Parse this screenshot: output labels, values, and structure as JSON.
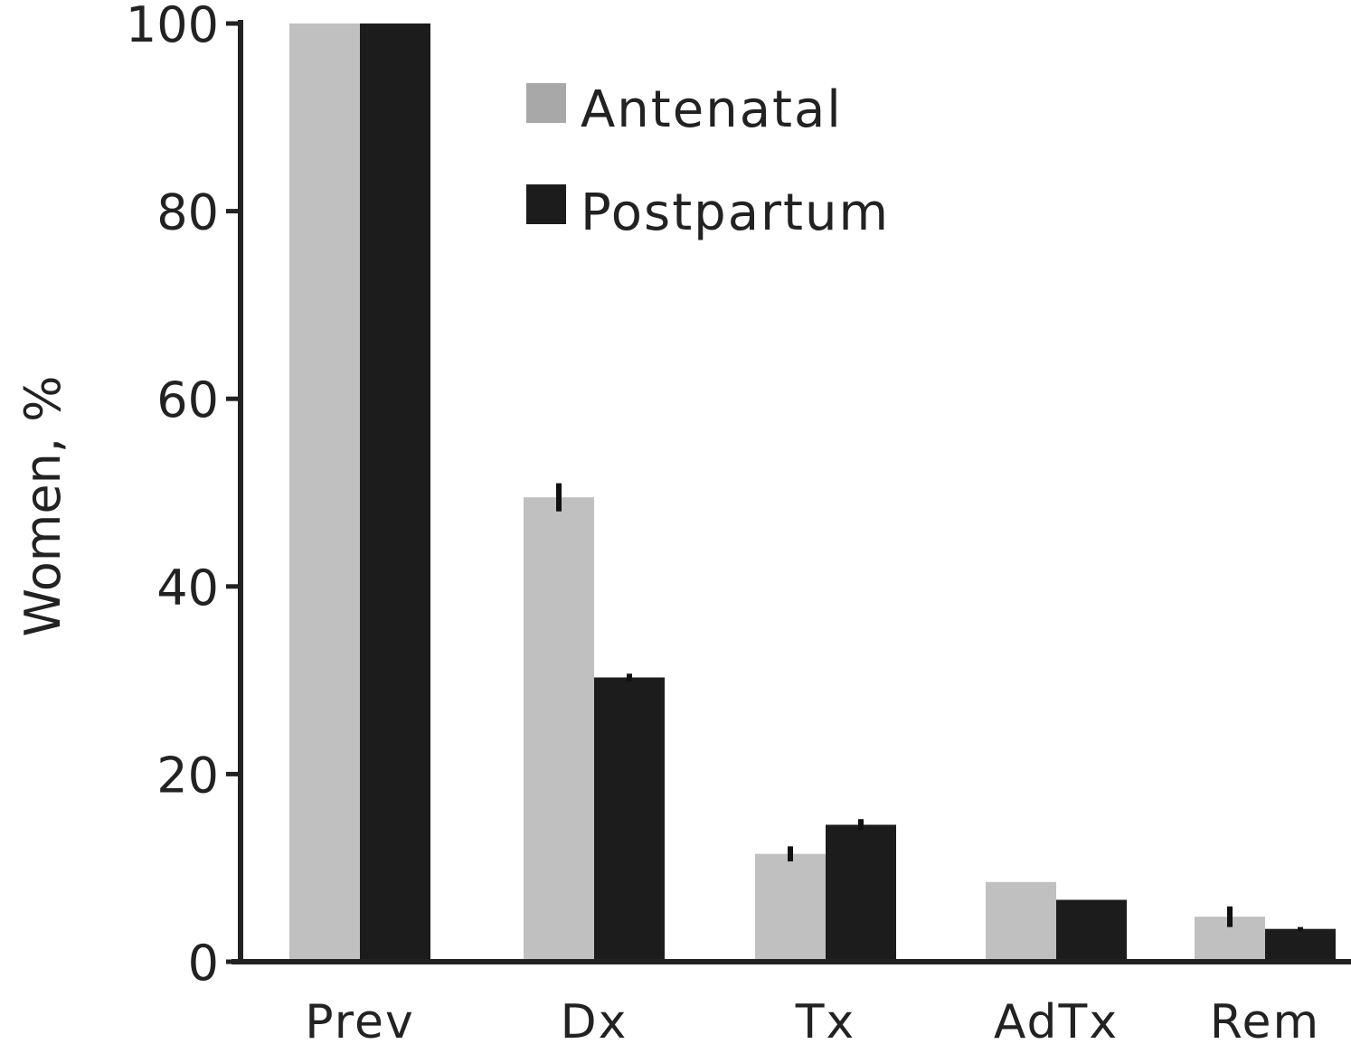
{
  "chart_data": {
    "type": "bar",
    "title": "",
    "xlabel": "",
    "ylabel": "Women, %",
    "ylim": [
      0,
      100
    ],
    "yticks": [
      "0",
      "20",
      "40",
      "60",
      "80",
      "100"
    ],
    "grid": false,
    "legend_position": "top-right",
    "categories": [
      "Prev",
      "Dx",
      "Tx",
      "AdTx",
      "Rem"
    ],
    "series": [
      {
        "name": "Antenatal",
        "color": "#c0c0c0",
        "values": [
          100,
          49.5,
          11.5,
          8.5,
          4.8
        ],
        "errors": [
          0,
          1.5,
          0.8,
          0,
          1.1
        ]
      },
      {
        "name": "Postpartum",
        "color": "#1c1c1c",
        "values": [
          100,
          30.3,
          14.6,
          6.6,
          3.5
        ],
        "errors": [
          0,
          0.4,
          0.6,
          0,
          0.2
        ]
      }
    ],
    "legend_swatch_colors": [
      "#a8a8a8",
      "#1c1c1c"
    ]
  }
}
